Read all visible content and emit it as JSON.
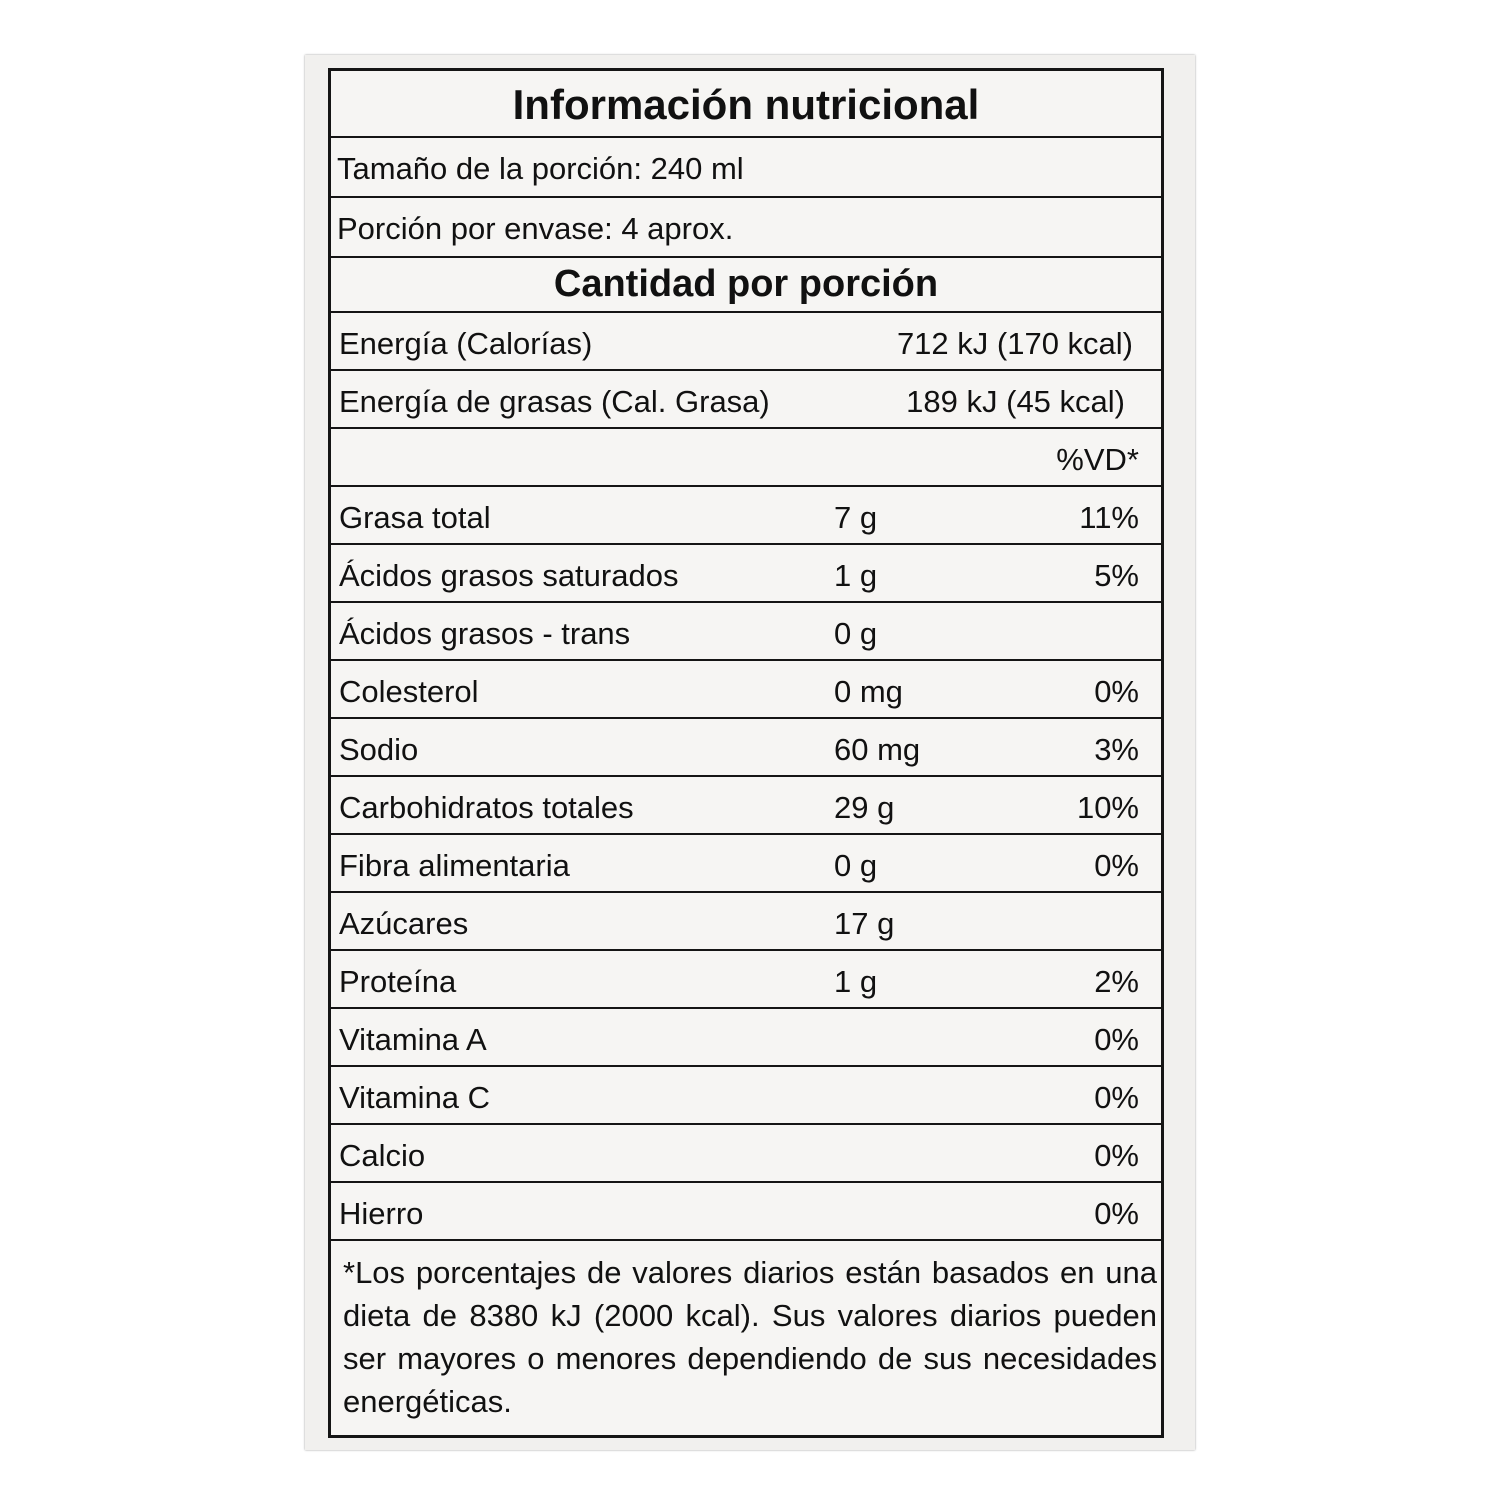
{
  "title": "Información nutricional",
  "serving_size": "Tamaño de la porción: 240 ml",
  "servings_per_container": "Porción por envase: 4 aprox.",
  "amount_header": "Cantidad por porción",
  "energy": {
    "label": "Energía (Calorías)",
    "value": "712 kJ (170 kcal)"
  },
  "fat_energy": {
    "label": "Energía de grasas (Cal. Grasa)",
    "value": "189 kJ (45 kcal)"
  },
  "dv_header": "%VD*",
  "nutrients": [
    {
      "label": "Grasa total",
      "amount": "7 g",
      "dv": "11%"
    },
    {
      "label": "Ácidos grasos saturados",
      "amount": "1 g",
      "dv": "5%"
    },
    {
      "label": "Ácidos grasos - trans",
      "amount": "0 g",
      "dv": ""
    },
    {
      "label": "Colesterol",
      "amount": "0 mg",
      "dv": "0%"
    },
    {
      "label": "Sodio",
      "amount": "60 mg",
      "dv": "3%"
    },
    {
      "label": "Carbohidratos totales",
      "amount": "29 g",
      "dv": "10%"
    },
    {
      "label": "Fibra alimentaria",
      "amount": "0 g",
      "dv": "0%"
    },
    {
      "label": "Azúcares",
      "amount": "17 g",
      "dv": ""
    },
    {
      "label": "Proteína",
      "amount": "1 g",
      "dv": "2%"
    },
    {
      "label": "Vitamina A",
      "amount": "",
      "dv": "0%"
    },
    {
      "label": "Vitamina C",
      "amount": "",
      "dv": "0%"
    },
    {
      "label": "Calcio",
      "amount": "",
      "dv": "0%"
    },
    {
      "label": "Hierro",
      "amount": "",
      "dv": "0%"
    }
  ],
  "footnote": "*Los porcentajes de valores diarios están basados en una dieta de 8380 kJ (2000 kcal). Sus valores diarios pueden ser mayores o menores dependiendo de sus necesidades energéticas."
}
